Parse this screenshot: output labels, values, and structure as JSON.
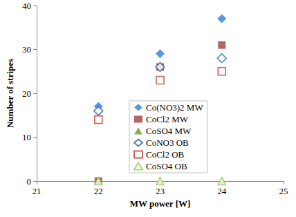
{
  "chart_data": {
    "type": "scatter",
    "x_label": "MW power [W]",
    "y_label": "Number of stripes",
    "xlim": [
      21,
      25
    ],
    "xticks": [
      21,
      22,
      23,
      24,
      25
    ],
    "ylim": [
      0,
      40
    ],
    "yticks": [
      0,
      10,
      20,
      30,
      40
    ],
    "grid": false,
    "legend": "lower right",
    "series": [
      {
        "name": "Co(NO3)2 MW",
        "color": "#2f7ed8",
        "marker": "diamond",
        "x": [
          22,
          23,
          24
        ],
        "values": [
          17,
          29,
          37
        ]
      },
      {
        "name": "CoCl2 MW",
        "color": "#a0403c",
        "marker": "square",
        "x": [
          22,
          23,
          24
        ],
        "values": [
          0,
          26,
          31
        ]
      },
      {
        "name": "CoSO4 MW",
        "color": "#6f9a2e",
        "marker": "triangle",
        "x": [
          22,
          23,
          24
        ],
        "values": [
          0,
          0,
          0
        ]
      },
      {
        "name": "CoNO3 OB",
        "color": "#2a5fa8",
        "marker": "open-diamond",
        "x": [
          22,
          23,
          24
        ],
        "values": [
          16,
          26,
          28
        ]
      },
      {
        "name": "CoCl2 OB",
        "color": "#c0392b",
        "marker": "open-square",
        "x": [
          22,
          23,
          24
        ],
        "values": [
          14,
          23,
          25
        ]
      },
      {
        "name": "CoSO4 OB",
        "color": "#92d050",
        "marker": "open-triangle",
        "x": [
          22,
          23,
          24
        ],
        "values": [
          0,
          0,
          0
        ]
      }
    ]
  }
}
